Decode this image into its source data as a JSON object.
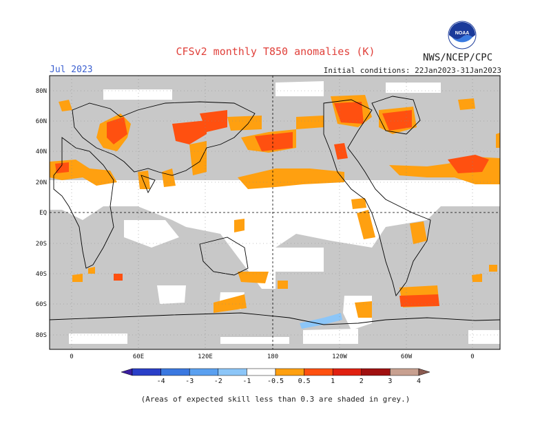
{
  "header": {
    "title": "CFSv2 monthly T850 anomalies (K)",
    "month": "Jul 2023",
    "org": "NWS/NCEP/CPC",
    "initial_conditions": "Initial conditions: 22Jan2023-31Jan2023",
    "logo_text": "NOAA"
  },
  "map": {
    "lat_labels": [
      "80N",
      "60N",
      "40N",
      "20N",
      "EQ",
      "20S",
      "40S",
      "60S",
      "80S"
    ],
    "lon_labels": [
      "0",
      "60E",
      "120E",
      "180",
      "120W",
      "60W",
      "0"
    ]
  },
  "colorbar": {
    "labels": [
      "-4",
      "-3",
      "-2",
      "-1",
      "-0.5",
      "0.5",
      "1",
      "2",
      "3",
      "4"
    ],
    "colors": [
      "#3b1ea0",
      "#2a3fc8",
      "#3a78e0",
      "#5aa0f0",
      "#8cc6f8",
      "#ffffff",
      "#ffa010",
      "#ff5010",
      "#e02010",
      "#a01010",
      "#c8a090",
      "#8a5a50"
    ]
  },
  "footer": "(Areas of expected skill less than 0.3 are shaded in grey.)",
  "colors": {
    "grey_mask": "#c8c8c8",
    "title": "#e0403a",
    "month": "#3a5fd0"
  }
}
